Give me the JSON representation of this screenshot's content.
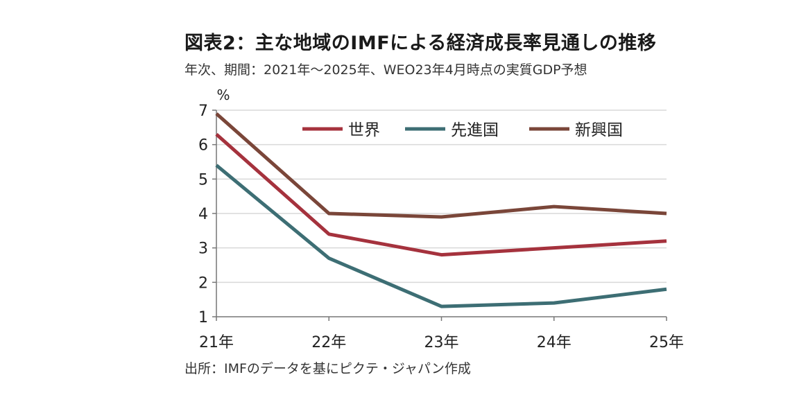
{
  "title": "図表2：主な地域のIMFによる経済成長率見通しの推移",
  "subtitle": "年次、期間：2021年～2025年、WEO23年4月時点の実質GDP予想",
  "source": "出所：IMFのデータを基にピクテ・ジャパン作成",
  "chart_data": {
    "type": "line",
    "ylabel": "%",
    "categories": [
      "21年",
      "22年",
      "23年",
      "24年",
      "25年"
    ],
    "ylim": [
      1,
      7
    ],
    "yticks": [
      1,
      2,
      3,
      4,
      5,
      6,
      7
    ],
    "grid": true,
    "legend_position": "top",
    "series": [
      {
        "name": "世界",
        "color": "#a5323d",
        "values": [
          6.3,
          3.4,
          2.8,
          3.0,
          3.2
        ]
      },
      {
        "name": "先進国",
        "color": "#3d6e74",
        "values": [
          5.4,
          2.7,
          1.3,
          1.4,
          1.8
        ]
      },
      {
        "name": "新興国",
        "color": "#7a4639",
        "values": [
          6.9,
          4.0,
          3.9,
          4.2,
          4.0
        ]
      }
    ]
  }
}
